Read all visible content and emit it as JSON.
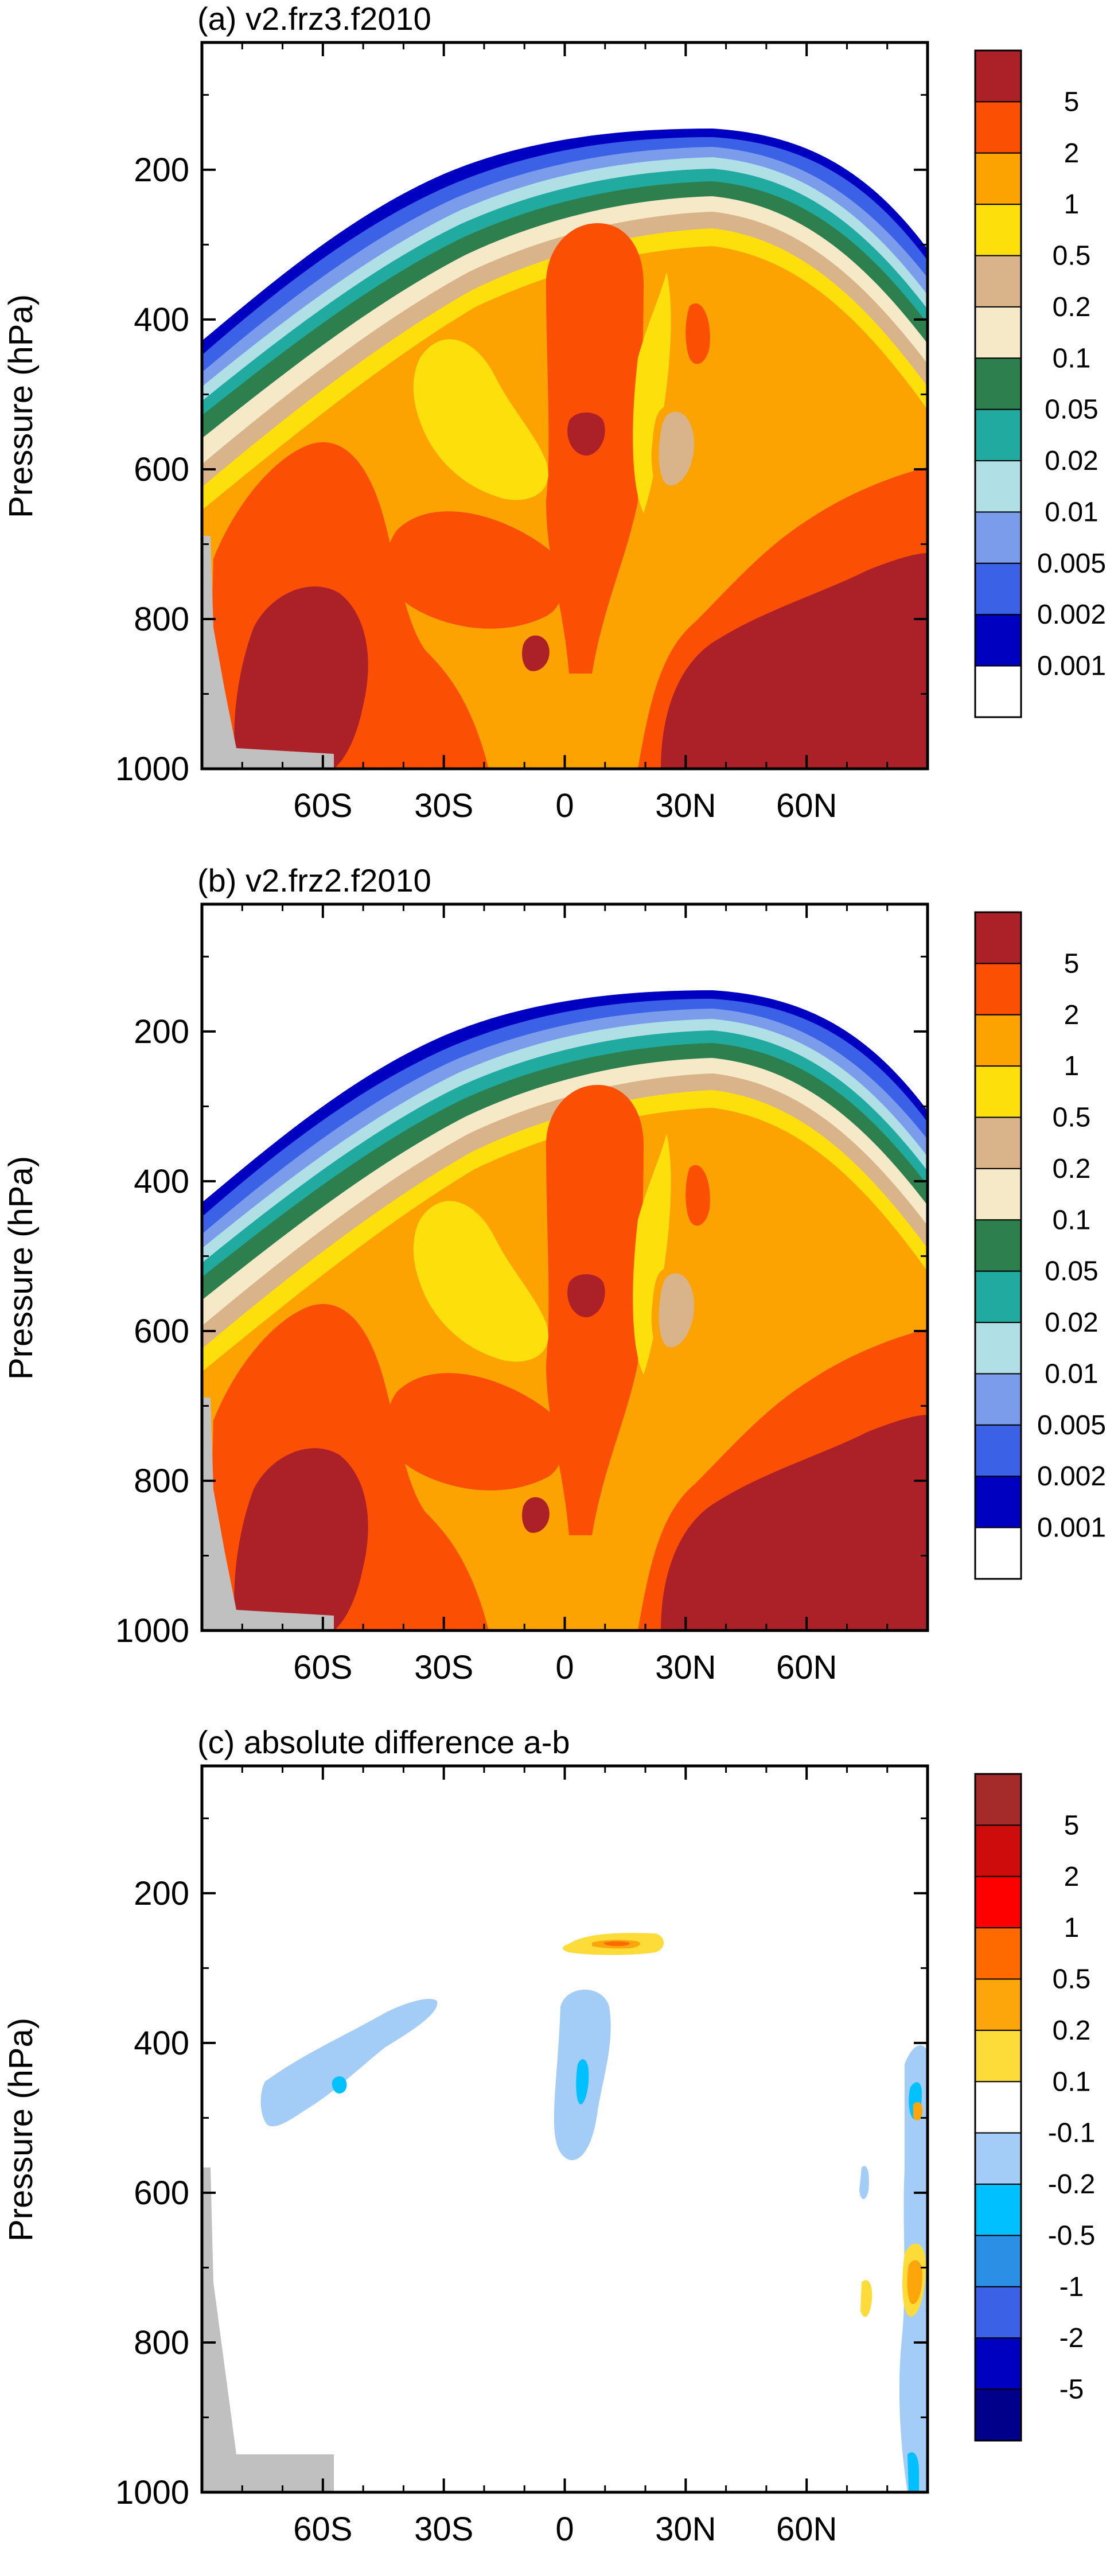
{
  "figure": {
    "yaxis_label": "Pressure (hPa)",
    "panels": [
      {
        "id": "a",
        "title": "(a) v2.frz3.f2010"
      },
      {
        "id": "b",
        "title": "(b) v2.frz2.f2010"
      },
      {
        "id": "c",
        "title": "(c) absolute difference a-b"
      }
    ]
  },
  "chart_data": [
    {
      "type": "heatmap",
      "title": "(a) v2.frz3.f2010",
      "xlabel": "",
      "ylabel": "Pressure (hPa)",
      "x_ticks": [
        "60S",
        "30S",
        "0",
        "30N",
        "60N"
      ],
      "x_tick_values": [
        -60,
        -30,
        0,
        30,
        60
      ],
      "xlim": [
        -90,
        90
      ],
      "y_ticks": [
        "200",
        "400",
        "600",
        "800",
        "1000"
      ],
      "y_tick_values": [
        200,
        400,
        600,
        800,
        1000
      ],
      "ylim": [
        1000,
        30
      ],
      "colorbar_labels": [
        "5",
        "2",
        "1",
        "0.5",
        "0.2",
        "0.1",
        "0.05",
        "0.02",
        "0.01",
        "0.005",
        "0.002",
        "0.001"
      ],
      "colorbar_colors": [
        "#ab2127",
        "#fb4f04",
        "#fca201",
        "#fde00b",
        "#d9b38a",
        "#f6e9c7",
        "#2e7f4e",
        "#21aaa0",
        "#b0e0e6",
        "#7b9ceb",
        "#3b62e6",
        "#0000c0",
        "#ffffff"
      ],
      "fields": {
        "field": "a",
        "tropopause_lat": [
          -90,
          -60,
          -30,
          0,
          30,
          60,
          90
        ],
        "tropopause_hpa": [
          470,
          330,
          245,
          225,
          215,
          245,
          340
        ],
        "max_level": [
          {
            "lat": 0,
            "hpa": 545,
            "level": "5"
          },
          {
            "lat": 0,
            "hpa": 870,
            "level": "5"
          },
          {
            "lat": -55,
            "hpa": 860,
            "level": "5"
          },
          {
            "lat": 65,
            "hpa": 855,
            "level": "5"
          }
        ]
      }
    },
    {
      "type": "heatmap",
      "title": "(b) v2.frz2.f2010",
      "xlabel": "",
      "ylabel": "Pressure (hPa)",
      "x_ticks": [
        "60S",
        "30S",
        "0",
        "30N",
        "60N"
      ],
      "x_tick_values": [
        -60,
        -30,
        0,
        30,
        60
      ],
      "xlim": [
        -90,
        90
      ],
      "y_ticks": [
        "200",
        "400",
        "600",
        "800",
        "1000"
      ],
      "y_tick_values": [
        200,
        400,
        600,
        800,
        1000
      ],
      "ylim": [
        1000,
        30
      ],
      "colorbar_labels": [
        "5",
        "2",
        "1",
        "0.5",
        "0.2",
        "0.1",
        "0.05",
        "0.02",
        "0.01",
        "0.005",
        "0.002",
        "0.001"
      ],
      "colorbar_colors": [
        "#ab2127",
        "#fb4f04",
        "#fca201",
        "#fde00b",
        "#d9b38a",
        "#f6e9c7",
        "#2e7f4e",
        "#21aaa0",
        "#b0e0e6",
        "#7b9ceb",
        "#3b62e6",
        "#0000c0",
        "#ffffff"
      ],
      "fields": {
        "field": "b",
        "tropopause_lat": [
          -90,
          -60,
          -30,
          0,
          30,
          60,
          90
        ],
        "tropopause_hpa": [
          470,
          330,
          245,
          225,
          215,
          245,
          340
        ],
        "max_level": [
          {
            "lat": 0,
            "hpa": 545,
            "level": "5"
          },
          {
            "lat": 0,
            "hpa": 870,
            "level": "5"
          },
          {
            "lat": -55,
            "hpa": 860,
            "level": "5"
          },
          {
            "lat": 65,
            "hpa": 855,
            "level": "5"
          }
        ]
      }
    },
    {
      "type": "heatmap",
      "title": "(c) absolute difference a-b",
      "xlabel": "",
      "ylabel": "Pressure (hPa)",
      "x_ticks": [
        "60S",
        "30S",
        "0",
        "30N",
        "60N"
      ],
      "x_tick_values": [
        -60,
        -30,
        0,
        30,
        60
      ],
      "xlim": [
        -90,
        90
      ],
      "y_ticks": [
        "200",
        "400",
        "600",
        "800",
        "1000"
      ],
      "y_tick_values": [
        200,
        400,
        600,
        800,
        1000
      ],
      "ylim": [
        1000,
        30
      ],
      "colorbar_labels": [
        "5",
        "2",
        "1",
        "0.5",
        "0.2",
        "0.1",
        "-0.1",
        "-0.2",
        "-0.5",
        "-1",
        "-2",
        "-5"
      ],
      "colorbar_colors": [
        "#a52a2a",
        "#cf0c0c",
        "#fe0000",
        "#fe6a00",
        "#fca60c",
        "#fddc3a",
        "#ffffff",
        "#a3cdf6",
        "#00c0ff",
        "#2c8fe6",
        "#3b62e6",
        "#0000c0",
        "#00008b"
      ],
      "fields": {
        "field": "c",
        "features": [
          {
            "lat": 5,
            "hpa": 275,
            "value": "0.1"
          },
          {
            "lat": 5,
            "hpa": 278,
            "value": "0.5"
          },
          {
            "lat": 0,
            "hpa": 440,
            "value": "-0.1"
          },
          {
            "lat": 3,
            "hpa": 525,
            "value": "-0.2"
          },
          {
            "lat": -48,
            "hpa": 480,
            "value": "-0.1"
          },
          {
            "lat": -57,
            "hpa": 450,
            "value": "-0.2"
          },
          {
            "lat": 87,
            "hpa": 890,
            "value": "0.1"
          },
          {
            "lat": 86,
            "hpa": 575,
            "value": "-0.2"
          }
        ]
      }
    }
  ]
}
